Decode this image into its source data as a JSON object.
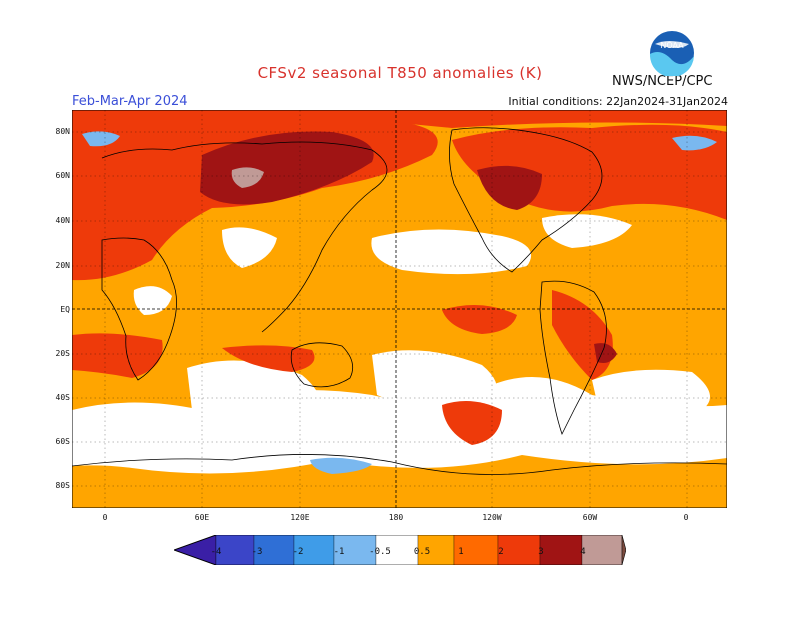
{
  "title": "CFSv2 seasonal T850 anomalies (K)",
  "season": "Feb-Mar-Apr 2024",
  "initial_conditions": "Initial conditions: 22Jan2024-31Jan2024",
  "agency": "NWS/NCEP/CPC",
  "logo_text": "NOAA",
  "lat_labels": [
    "80N",
    "60N",
    "40N",
    "20N",
    "EQ",
    "20S",
    "40S",
    "60S",
    "80S"
  ],
  "lon_labels": [
    "0",
    "60E",
    "120E",
    "180",
    "120W",
    "60W",
    "0"
  ],
  "colorbar": {
    "labels": [
      "-4",
      "-3",
      "-2",
      "-1",
      "-0.5",
      "0.5",
      "1",
      "2",
      "3",
      "4"
    ],
    "colors": [
      "#3a1fa6",
      "#3b45c8",
      "#2f6fd6",
      "#3f9ce8",
      "#7ab8ef",
      "#ffffff",
      "#ffa500",
      "#ff6a00",
      "#ee3a0a",
      "#a01414",
      "#c09a96",
      "#7a4a3e"
    ]
  }
}
